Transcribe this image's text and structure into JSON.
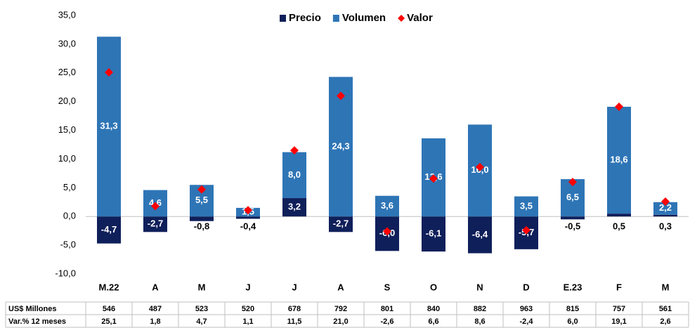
{
  "chart_data": {
    "type": "bar",
    "categories": [
      "M.22",
      "A",
      "M",
      "J",
      "J",
      "A",
      "S",
      "O",
      "N",
      "D",
      "E.23",
      "F",
      "M"
    ],
    "series": [
      {
        "name": "Precio",
        "color": "#0f1f5a",
        "values": [
          -4.7,
          -2.7,
          -0.8,
          -0.4,
          3.2,
          -2.7,
          -6.0,
          -6.1,
          -6.4,
          -5.7,
          -0.5,
          0.5,
          0.3
        ],
        "value_labels": [
          "-4,7",
          "-2,7",
          "-0,8",
          "-0,4",
          "3,2",
          "-2,7",
          "-6,0",
          "-6,1",
          "-6,4",
          "-5,7",
          "-0,5",
          "0,5",
          "0,3"
        ]
      },
      {
        "name": "Volumen",
        "color": "#2e75b6",
        "values": [
          31.3,
          4.6,
          5.5,
          1.5,
          8.0,
          24.3,
          3.6,
          13.6,
          16.0,
          3.5,
          6.5,
          18.6,
          2.2
        ],
        "value_labels": [
          "31,3",
          "4,6",
          "5,5",
          "1,5",
          "8,0",
          "24,3",
          "3,6",
          "13,6",
          "16,0",
          "3,5",
          "6,5",
          "18,6",
          "2,2"
        ]
      },
      {
        "name": "Valor",
        "color": "#ff0000",
        "values": [
          25.1,
          1.8,
          4.7,
          1.1,
          11.5,
          21.0,
          -2.6,
          6.6,
          8.6,
          -2.4,
          6.0,
          19.1,
          2.6
        ],
        "value_labels": [
          "25,1",
          "1,8",
          "4,7",
          "1,1",
          "11,5",
          "21,0",
          "-2,6",
          "6,6",
          "8,6",
          "-2,4",
          "6,0",
          "19,1",
          "2,6"
        ]
      }
    ],
    "ylim": [
      -10,
      35
    ],
    "yticks": [
      {
        "value": -10,
        "label": "-10,0"
      },
      {
        "value": -5,
        "label": "-5,0"
      },
      {
        "value": 0,
        "label": "0,0"
      },
      {
        "value": 5,
        "label": "5,0"
      },
      {
        "value": 10,
        "label": "10,0"
      },
      {
        "value": 15,
        "label": "15,0"
      },
      {
        "value": 20,
        "label": "20,0"
      },
      {
        "value": 25,
        "label": "25,0"
      },
      {
        "value": 30,
        "label": "30,0"
      },
      {
        "value": 35,
        "label": "35,0"
      }
    ]
  },
  "table": {
    "row_labels": [
      "US$ Millones",
      "Var.% 12 meses"
    ],
    "usd": [
      546,
      487,
      523,
      520,
      678,
      792,
      801,
      840,
      882,
      963,
      815,
      757,
      561
    ]
  }
}
